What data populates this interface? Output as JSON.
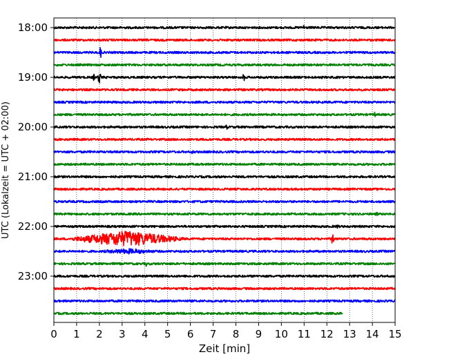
{
  "chart_data": {
    "type": "line",
    "title": "",
    "xlabel": "Zeit  [min]",
    "ylabel": "UTC (Lokalzeit = UTC + 02:00)",
    "xlim": [
      0,
      15
    ],
    "xticks": [
      0,
      1,
      2,
      3,
      4,
      5,
      6,
      7,
      8,
      9,
      10,
      11,
      12,
      13,
      14,
      15
    ],
    "y_tick_labels": [
      "18:00",
      "19:00",
      "20:00",
      "21:00",
      "22:00",
      "23:00"
    ],
    "grid": "vertical dotted",
    "colors": [
      "#000000",
      "#ff0000",
      "#0000ff",
      "#008000"
    ],
    "lines": [
      {
        "time": "18:00",
        "color": "#000000",
        "end_min": 15,
        "events": [
          {
            "min": 11.0,
            "amp": 1.4
          }
        ]
      },
      {
        "time": "18:15",
        "color": "#ff0000",
        "end_min": 15,
        "events": []
      },
      {
        "time": "18:30",
        "color": "#0000ff",
        "end_min": 15,
        "events": [
          {
            "min": 2.05,
            "amp": 2.2
          }
        ]
      },
      {
        "time": "18:45",
        "color": "#008000",
        "end_min": 15,
        "events": []
      },
      {
        "time": "19:00",
        "color": "#000000",
        "end_min": 15,
        "events": [
          {
            "min": 1.75,
            "amp": 1.2
          },
          {
            "min": 2.0,
            "amp": 2.8
          },
          {
            "min": 8.35,
            "amp": 1.6
          }
        ]
      },
      {
        "time": "19:15",
        "color": "#ff0000",
        "end_min": 15,
        "events": []
      },
      {
        "time": "19:30",
        "color": "#0000ff",
        "end_min": 15,
        "events": []
      },
      {
        "time": "19:45",
        "color": "#008000",
        "end_min": 15,
        "events": [
          {
            "min": 14.1,
            "amp": 1.0
          }
        ]
      },
      {
        "time": "20:00",
        "color": "#000000",
        "end_min": 15,
        "events": [
          {
            "min": 7.6,
            "amp": 1.0
          }
        ]
      },
      {
        "time": "20:15",
        "color": "#ff0000",
        "end_min": 15,
        "events": []
      },
      {
        "time": "20:30",
        "color": "#0000ff",
        "end_min": 15,
        "events": [
          {
            "min": 6.1,
            "amp": 0.9
          }
        ]
      },
      {
        "time": "20:45",
        "color": "#008000",
        "end_min": 15,
        "events": []
      },
      {
        "time": "21:00",
        "color": "#000000",
        "end_min": 15,
        "events": []
      },
      {
        "time": "21:15",
        "color": "#ff0000",
        "end_min": 15,
        "events": []
      },
      {
        "time": "21:30",
        "color": "#0000ff",
        "end_min": 15,
        "events": []
      },
      {
        "time": "21:45",
        "color": "#008000",
        "end_min": 15,
        "events": [
          {
            "min": 14.2,
            "amp": 0.8
          }
        ]
      },
      {
        "time": "22:00",
        "color": "#000000",
        "end_min": 15,
        "events": [
          {
            "min": 12.45,
            "amp": 1.0
          }
        ]
      },
      {
        "time": "22:15",
        "color": "#ff0000",
        "end_min": 15,
        "events": [
          {
            "min": 3.2,
            "amp": 2.6,
            "width_min": 3.0
          },
          {
            "min": 12.25,
            "amp": 2.6
          }
        ]
      },
      {
        "time": "22:30",
        "color": "#0000ff",
        "end_min": 15,
        "events": [
          {
            "min": 3.3,
            "amp": 0.9,
            "width_min": 2.0
          }
        ]
      },
      {
        "time": "22:45",
        "color": "#008000",
        "end_min": 15,
        "events": [
          {
            "min": 4.05,
            "amp": 1.0
          }
        ]
      },
      {
        "time": "23:00",
        "color": "#000000",
        "end_min": 15,
        "events": []
      },
      {
        "time": "23:15",
        "color": "#ff0000",
        "end_min": 15,
        "events": []
      },
      {
        "time": "23:30",
        "color": "#0000ff",
        "end_min": 15,
        "events": []
      },
      {
        "time": "23:45",
        "color": "#008000",
        "end_min": 12.7,
        "events": []
      }
    ]
  }
}
